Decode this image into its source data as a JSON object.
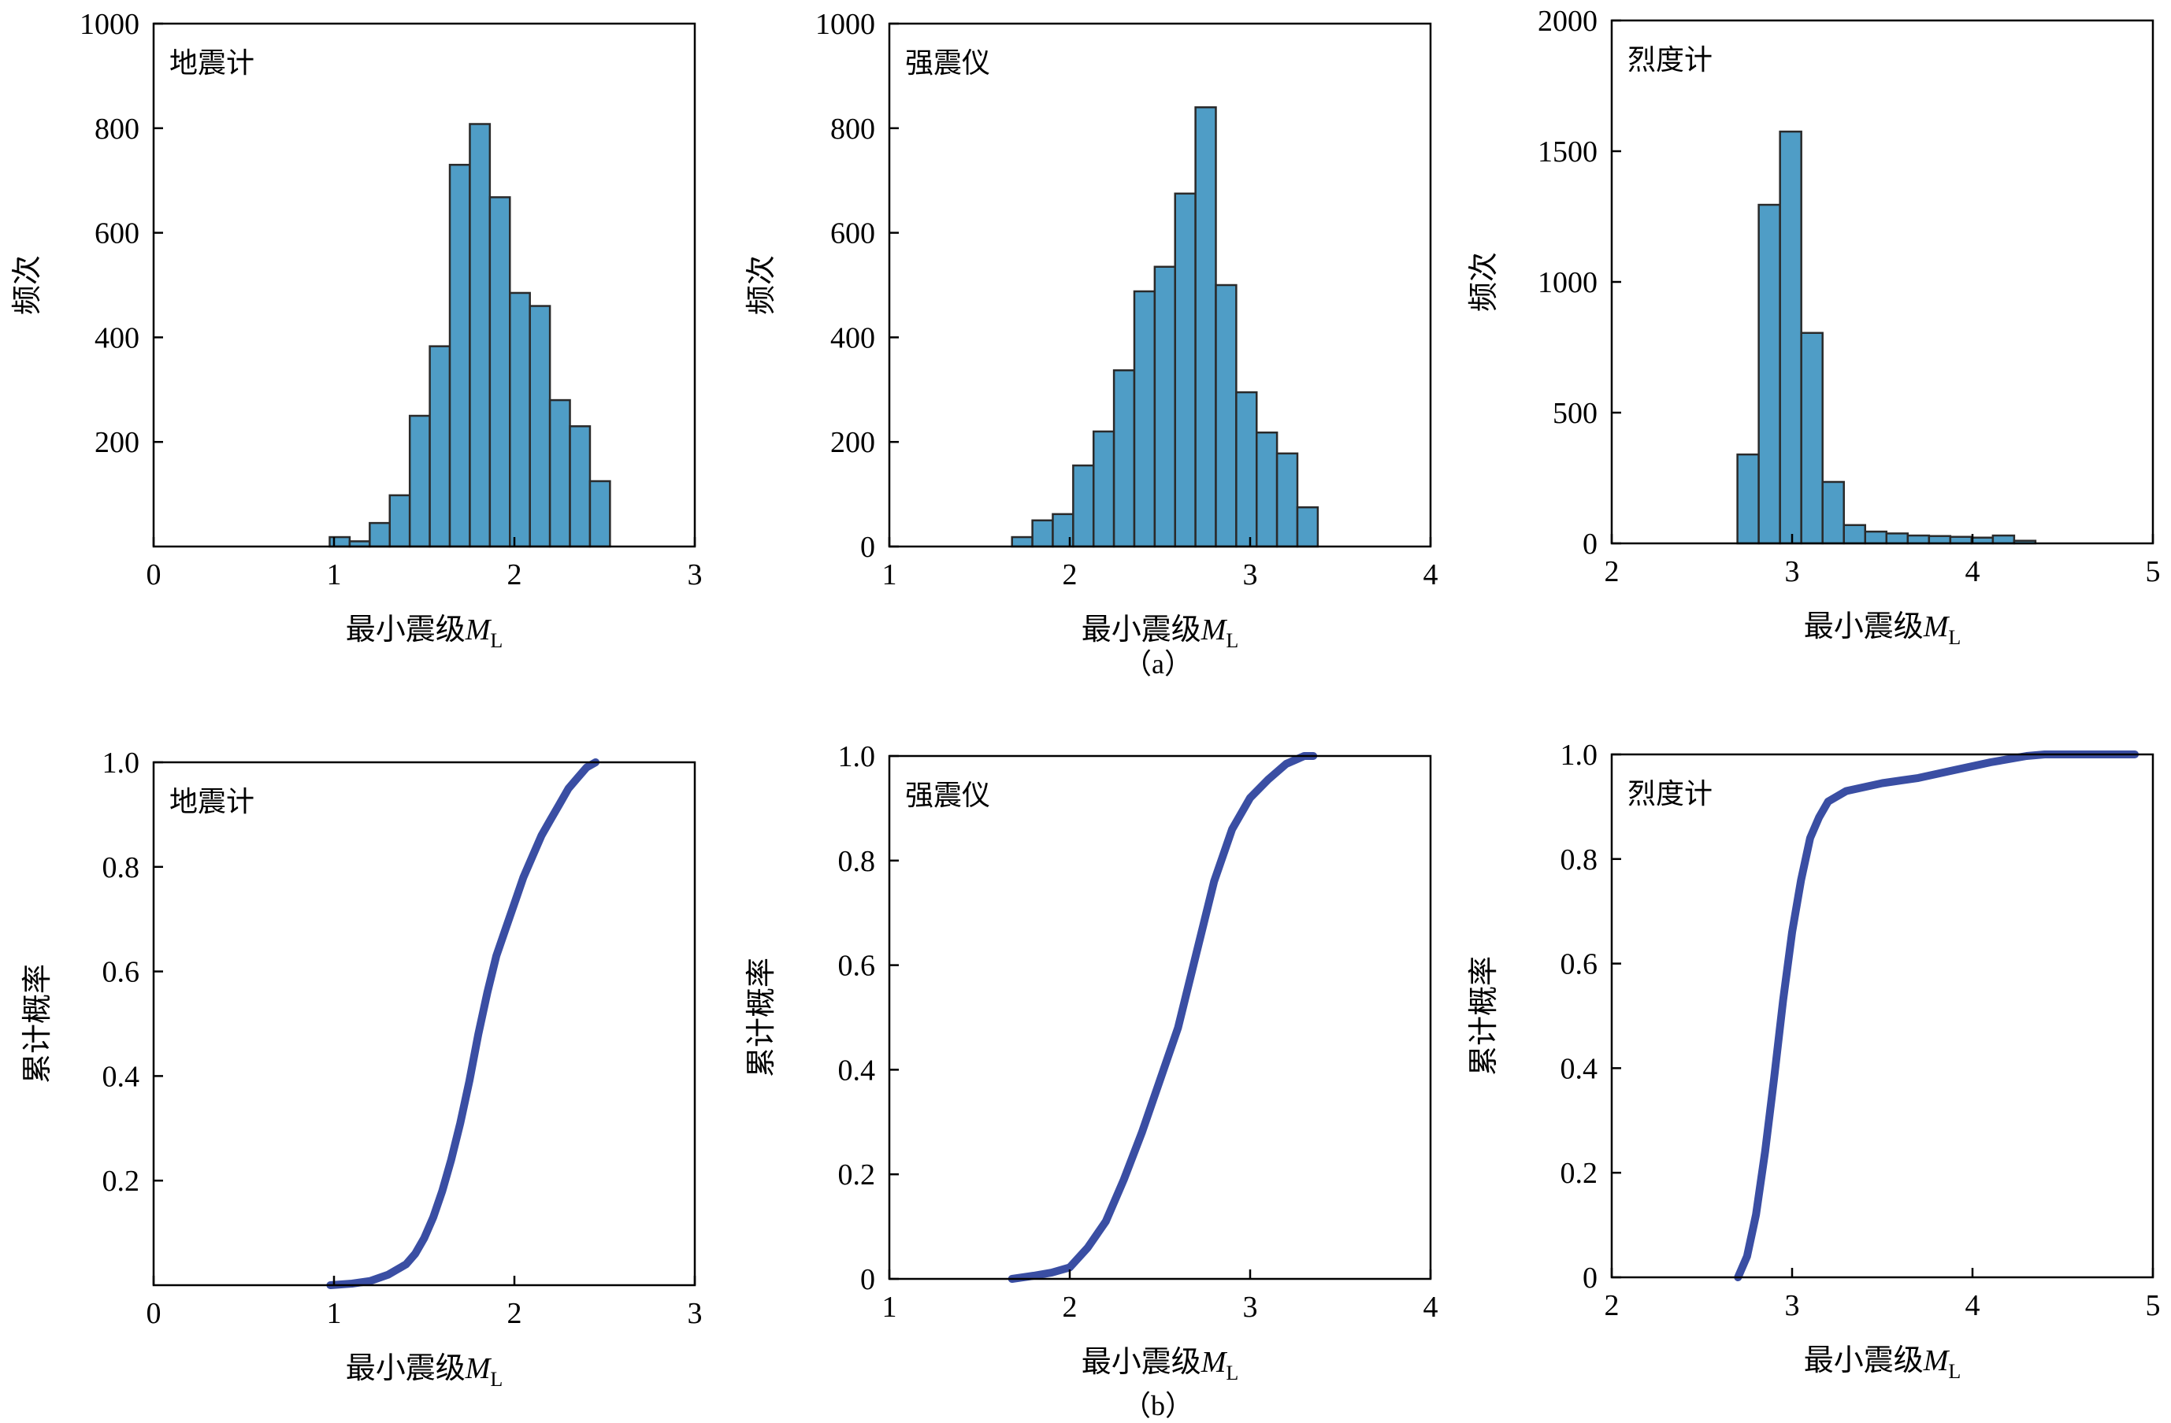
{
  "figure": {
    "caption_a": "（a）",
    "caption_b": "（b）",
    "xlabel_prefix": "最小震级",
    "xlabel_symbol": "M",
    "xlabel_subscript": "L",
    "hist_ylabel": "频次",
    "cdf_ylabel": "累计概率"
  },
  "colors": {
    "bar_fill": "#4f9dc6",
    "bar_edge": "#2a2a2a",
    "cdf_line": "#3a4ea3"
  },
  "chart_data": [
    {
      "type": "bar",
      "title": "地震计",
      "xlabel": "最小震级ML",
      "ylabel": "频次",
      "xlim": [
        0,
        3
      ],
      "ylim": [
        0,
        1000
      ],
      "xticks": [
        "0",
        "1",
        "2",
        "3"
      ],
      "yticks": [
        "200",
        "400",
        "600",
        "800",
        "1000"
      ],
      "bin_width": 0.111,
      "bin_starts": [
        0.976,
        1.087,
        1.198,
        1.309,
        1.42,
        1.531,
        1.642,
        1.753,
        1.864,
        1.975,
        2.086,
        2.197,
        2.308,
        2.419
      ],
      "values": [
        18,
        10,
        45,
        98,
        250,
        383,
        730,
        808,
        668,
        485,
        460,
        280,
        230,
        125
      ]
    },
    {
      "type": "bar",
      "title": "强震仪",
      "xlabel": "最小震级ML",
      "ylabel": "频次",
      "xlim": [
        1,
        4
      ],
      "ylim": [
        0,
        1000
      ],
      "xticks": [
        "1",
        "2",
        "3",
        "4"
      ],
      "yticks": [
        "0",
        "200",
        "400",
        "600",
        "800",
        "1000"
      ],
      "bin_width": 0.113,
      "bin_starts": [
        1.68,
        1.793,
        1.906,
        2.019,
        2.132,
        2.245,
        2.358,
        2.471,
        2.584,
        2.697,
        2.81,
        2.923,
        3.036,
        3.149,
        3.262
      ],
      "values": [
        18,
        50,
        62,
        155,
        220,
        337,
        488,
        535,
        675,
        840,
        500,
        295,
        218,
        178,
        75
      ]
    },
    {
      "type": "bar",
      "title": "烈度计",
      "xlabel": "最小震级ML",
      "ylabel": "频次",
      "xlim": [
        2,
        5
      ],
      "ylim": [
        0,
        2000
      ],
      "xticks": [
        "2",
        "3",
        "4",
        "5"
      ],
      "yticks": [
        "0",
        "500",
        "1000",
        "1500",
        "2000"
      ],
      "bin_width": 0.118,
      "bin_starts": [
        2.697,
        2.815,
        2.933,
        3.051,
        3.169,
        3.287,
        3.405,
        3.523,
        3.641,
        3.759,
        3.877,
        3.995,
        4.113,
        4.231
      ],
      "values": [
        340,
        1295,
        1575,
        805,
        235,
        70,
        45,
        38,
        30,
        28,
        25,
        22,
        30,
        10
      ]
    },
    {
      "type": "line",
      "title": "地震计",
      "xlabel": "最小震级ML",
      "ylabel": "累计概率",
      "xlim": [
        0,
        3
      ],
      "ylim": [
        0,
        1.0
      ],
      "xticks": [
        "0",
        "1",
        "2",
        "3"
      ],
      "yticks": [
        "0.2",
        "0.4",
        "0.6",
        "0.8",
        "1.0"
      ],
      "series": [
        {
          "x": [
            0.98,
            1.1,
            1.2,
            1.3,
            1.4,
            1.45,
            1.5,
            1.55,
            1.6,
            1.65,
            1.7,
            1.75,
            1.8,
            1.85,
            1.9,
            1.95,
            2.0,
            2.05,
            2.1,
            2.15,
            2.2,
            2.25,
            2.3,
            2.35,
            2.4,
            2.45
          ],
          "y": [
            0.0,
            0.003,
            0.008,
            0.02,
            0.04,
            0.06,
            0.09,
            0.13,
            0.18,
            0.24,
            0.31,
            0.39,
            0.48,
            0.56,
            0.63,
            0.68,
            0.73,
            0.78,
            0.82,
            0.86,
            0.89,
            0.92,
            0.95,
            0.97,
            0.99,
            1.0
          ]
        }
      ]
    },
    {
      "type": "line",
      "title": "强震仪",
      "xlabel": "最小震级ML",
      "ylabel": "累计概率",
      "xlim": [
        1,
        4
      ],
      "ylim": [
        0,
        1.0
      ],
      "xticks": [
        "1",
        "2",
        "3",
        "4"
      ],
      "yticks": [
        "0",
        "0.2",
        "0.4",
        "0.6",
        "0.8",
        "1.0"
      ],
      "series": [
        {
          "x": [
            1.68,
            1.8,
            1.9,
            2.0,
            2.1,
            2.2,
            2.3,
            2.4,
            2.5,
            2.6,
            2.7,
            2.8,
            2.9,
            3.0,
            3.1,
            3.2,
            3.3,
            3.35
          ],
          "y": [
            0.0,
            0.006,
            0.012,
            0.022,
            0.06,
            0.11,
            0.19,
            0.28,
            0.38,
            0.48,
            0.62,
            0.76,
            0.86,
            0.92,
            0.955,
            0.985,
            1.0,
            1.0
          ]
        }
      ]
    },
    {
      "type": "line",
      "title": "烈度计",
      "xlabel": "最小震级ML",
      "ylabel": "累计概率",
      "xlim": [
        2,
        5
      ],
      "ylim": [
        0,
        1.0
      ],
      "xticks": [
        "2",
        "3",
        "4",
        "5"
      ],
      "yticks": [
        "0",
        "0.2",
        "0.4",
        "0.6",
        "0.8",
        "1.0"
      ],
      "series": [
        {
          "x": [
            2.7,
            2.75,
            2.8,
            2.85,
            2.9,
            2.95,
            3.0,
            3.05,
            3.1,
            3.15,
            3.2,
            3.3,
            3.5,
            3.7,
            3.9,
            4.1,
            4.3,
            4.4,
            4.9
          ],
          "y": [
            0.0,
            0.04,
            0.12,
            0.24,
            0.38,
            0.53,
            0.66,
            0.76,
            0.84,
            0.88,
            0.91,
            0.93,
            0.945,
            0.955,
            0.97,
            0.985,
            0.997,
            1.0,
            1.0
          ]
        }
      ]
    }
  ]
}
